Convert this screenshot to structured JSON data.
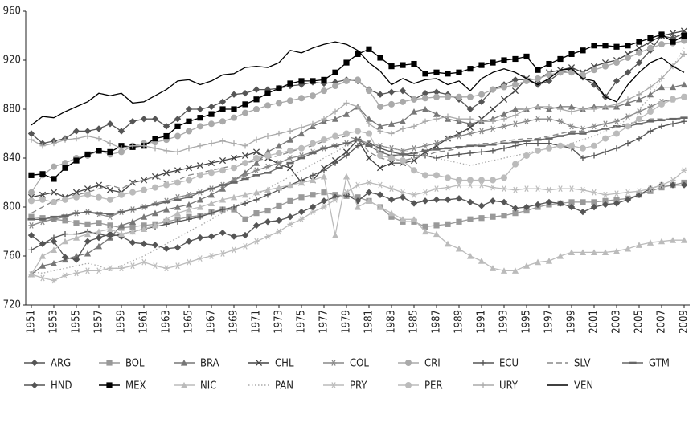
{
  "chart_data": {
    "type": "line",
    "x": [
      1951,
      1952,
      1953,
      1954,
      1955,
      1956,
      1957,
      1958,
      1959,
      1960,
      1961,
      1962,
      1963,
      1964,
      1965,
      1966,
      1967,
      1968,
      1969,
      1970,
      1971,
      1972,
      1973,
      1974,
      1975,
      1976,
      1977,
      1978,
      1979,
      1980,
      1981,
      1982,
      1983,
      1984,
      1985,
      1986,
      1987,
      1988,
      1989,
      1990,
      1991,
      1992,
      1993,
      1994,
      1995,
      1996,
      1997,
      1998,
      1999,
      2000,
      2001,
      2002,
      2003,
      2004,
      2005,
      2006,
      2007,
      2008,
      2009
    ],
    "xlim": [
      1950.5,
      2009.5
    ],
    "xticks": [
      1951,
      1953,
      1955,
      1957,
      1959,
      1961,
      1963,
      1965,
      1967,
      1969,
      1971,
      1973,
      1975,
      1977,
      1979,
      1981,
      1983,
      1985,
      1987,
      1989,
      1991,
      1993,
      1995,
      1997,
      1999,
      2001,
      2003,
      2005,
      2007,
      2009
    ],
    "ylim": [
      720,
      960
    ],
    "yticks": [
      720,
      760,
      800,
      840,
      880,
      920,
      960
    ],
    "series": [
      {
        "name": "ARG",
        "color": "#555555",
        "marker": "diamond",
        "linestyle": "solid",
        "values": [
          860,
          852,
          854,
          856,
          862,
          862,
          864,
          868,
          862,
          870,
          872,
          872,
          866,
          872,
          880,
          880,
          882,
          886,
          892,
          893,
          896,
          896,
          897,
          899,
          900,
          902,
          901,
          902,
          904,
          903,
          896,
          892,
          894,
          895,
          888,
          893,
          894,
          892,
          888,
          880,
          886,
          896,
          900,
          904,
          904,
          900,
          903,
          910,
          912,
          906,
          900,
          890,
          903,
          910,
          918,
          928,
          940,
          938,
          942
        ]
      },
      {
        "name": "BOL",
        "color": "#999999",
        "marker": "square",
        "linestyle": "solid",
        "values": [
          792,
          791,
          790,
          789,
          787,
          786,
          787,
          785,
          783,
          784,
          785,
          786,
          788,
          790,
          792,
          793,
          796,
          798,
          798,
          790,
          795,
          797,
          801,
          805,
          808,
          810,
          812,
          810,
          809,
          808,
          805,
          800,
          792,
          788,
          788,
          784,
          785,
          786,
          788,
          790,
          791,
          792,
          793,
          795,
          797,
          800,
          802,
          803,
          804,
          804,
          804,
          805,
          806,
          807,
          810,
          813,
          816,
          818,
          820
        ]
      },
      {
        "name": "BRA",
        "color": "#777777",
        "marker": "triangle",
        "linestyle": "solid",
        "values": [
          745,
          752,
          754,
          757,
          760,
          762,
          768,
          775,
          785,
          788,
          792,
          795,
          798,
          800,
          802,
          806,
          810,
          815,
          822,
          828,
          836,
          845,
          850,
          855,
          860,
          866,
          870,
          872,
          876,
          882,
          872,
          866,
          868,
          870,
          878,
          880,
          876,
          872,
          870,
          868,
          870,
          872,
          876,
          880,
          880,
          882,
          880,
          882,
          882,
          880,
          882,
          882,
          882,
          885,
          888,
          892,
          898,
          898,
          900
        ]
      },
      {
        "name": "CHL",
        "color": "#444444",
        "marker": "x",
        "linestyle": "solid",
        "values": [
          808,
          810,
          812,
          808,
          812,
          815,
          818,
          814,
          812,
          820,
          822,
          825,
          828,
          830,
          832,
          834,
          836,
          838,
          840,
          842,
          845,
          840,
          835,
          832,
          820,
          822,
          832,
          838,
          845,
          855,
          840,
          832,
          836,
          836,
          838,
          845,
          850,
          856,
          860,
          865,
          872,
          880,
          888,
          895,
          905,
          904,
          910,
          912,
          914,
          910,
          915,
          918,
          920,
          925,
          930,
          935,
          940,
          942,
          944
        ]
      },
      {
        "name": "COL",
        "color": "#888888",
        "marker": "asterisk",
        "linestyle": "solid",
        "values": [
          785,
          788,
          790,
          792,
          795,
          796,
          794,
          792,
          796,
          798,
          800,
          803,
          805,
          808,
          810,
          812,
          815,
          818,
          822,
          826,
          830,
          833,
          836,
          840,
          842,
          845,
          848,
          850,
          852,
          855,
          852,
          850,
          848,
          846,
          848,
          850,
          852,
          856,
          858,
          860,
          862,
          864,
          866,
          868,
          870,
          872,
          872,
          870,
          866,
          864,
          866,
          868,
          870,
          874,
          878,
          882,
          886,
          888,
          890
        ]
      },
      {
        "name": "CRI",
        "color": "#aaaaaa",
        "marker": "circle",
        "linestyle": "solid",
        "values": [
          812,
          826,
          833,
          836,
          840,
          842,
          846,
          843,
          845,
          850,
          852,
          853,
          855,
          858,
          862,
          866,
          868,
          870,
          873,
          877,
          880,
          883,
          885,
          887,
          889,
          891,
          895,
          899,
          903,
          904,
          895,
          882,
          884,
          886,
          888,
          889,
          890,
          890,
          890,
          890,
          892,
          896,
          898,
          900,
          903,
          905,
          908,
          910,
          910,
          908,
          912,
          915,
          918,
          922,
          926,
          930,
          933,
          934,
          936
        ]
      },
      {
        "name": "ECU",
        "color": "#555555",
        "marker": "plus",
        "linestyle": "solid",
        "values": [
          765,
          770,
          775,
          778,
          778,
          780,
          778,
          776,
          778,
          780,
          782,
          784,
          786,
          788,
          790,
          792,
          795,
          798,
          800,
          803,
          806,
          810,
          814,
          818,
          822,
          826,
          830,
          836,
          842,
          850,
          852,
          848,
          845,
          843,
          842,
          842,
          840,
          842,
          843,
          844,
          845,
          846,
          848,
          850,
          852,
          852,
          852,
          850,
          848,
          840,
          842,
          845,
          848,
          852,
          856,
          862,
          866,
          868,
          870
        ]
      },
      {
        "name": "SLV",
        "color": "#888888",
        "marker": "none",
        "linestyle": "dashed",
        "values": [
          795,
          800,
          805,
          808,
          810,
          812,
          815,
          818,
          815,
          820,
          822,
          825,
          820,
          822,
          826,
          828,
          830,
          832,
          834,
          836,
          838,
          840,
          842,
          845,
          848,
          850,
          854,
          856,
          858,
          855,
          845,
          840,
          838,
          838,
          840,
          842,
          845,
          846,
          848,
          850,
          852,
          852,
          854,
          855,
          856,
          856,
          858,
          860,
          862,
          862,
          862,
          864,
          866,
          868,
          870,
          872,
          872,
          872,
          872
        ]
      },
      {
        "name": "GTM",
        "color": "#666666",
        "marker": "dash",
        "linestyle": "solid",
        "values": [
          790,
          790,
          792,
          793,
          795,
          796,
          795,
          794,
          796,
          798,
          800,
          802,
          804,
          806,
          808,
          812,
          815,
          818,
          820,
          823,
          826,
          828,
          832,
          836,
          840,
          844,
          848,
          850,
          852,
          855,
          850,
          845,
          842,
          843,
          844,
          846,
          847,
          848,
          849,
          850,
          850,
          851,
          852,
          853,
          854,
          855,
          856,
          858,
          860,
          860,
          862,
          864,
          866,
          866,
          868,
          870,
          871,
          872,
          873
        ]
      },
      {
        "name": "HND",
        "color": "#555555",
        "marker": "diamond",
        "linestyle": "solid",
        "values": [
          777,
          770,
          772,
          759,
          757,
          772,
          775,
          778,
          776,
          771,
          770,
          769,
          766,
          767,
          772,
          775,
          776,
          779,
          776,
          777,
          785,
          788,
          789,
          792,
          796,
          800,
          805,
          808,
          810,
          805,
          812,
          810,
          806,
          808,
          803,
          805,
          806,
          806,
          807,
          804,
          801,
          805,
          804,
          799,
          800,
          802,
          804,
          803,
          800,
          796,
          800,
          802,
          803,
          806,
          810,
          815,
          818,
          818,
          818
        ]
      },
      {
        "name": "MEX",
        "color": "#000000",
        "marker": "square",
        "linestyle": "solid",
        "values": [
          826,
          827,
          823,
          832,
          838,
          843,
          846,
          845,
          850,
          849,
          850,
          856,
          858,
          866,
          870,
          873,
          876,
          880,
          880,
          884,
          888,
          893,
          897,
          901,
          903,
          903,
          904,
          910,
          918,
          925,
          929,
          922,
          915,
          916,
          917,
          909,
          910,
          909,
          910,
          913,
          916,
          918,
          920,
          921,
          923,
          912,
          917,
          921,
          925,
          928,
          932,
          932,
          931,
          932,
          935,
          938,
          941,
          935,
          940
        ]
      },
      {
        "name": "NIC",
        "color": "#bbbbbb",
        "marker": "triangle",
        "linestyle": "solid",
        "values": [
          745,
          760,
          765,
          772,
          775,
          778,
          780,
          782,
          778,
          780,
          782,
          785,
          790,
          795,
          798,
          800,
          803,
          806,
          808,
          810,
          812,
          814,
          816,
          818,
          820,
          822,
          825,
          777,
          825,
          800,
          805,
          800,
          795,
          790,
          790,
          780,
          778,
          770,
          766,
          760,
          756,
          750,
          748,
          748,
          752,
          755,
          756,
          760,
          763,
          763,
          763,
          763,
          764,
          766,
          769,
          771,
          772,
          773,
          773
        ]
      },
      {
        "name": "PAN",
        "color": "#aaaaaa",
        "marker": "none",
        "linestyle": "dotted",
        "values": [
          747,
          746,
          748,
          750,
          752,
          754,
          752,
          748,
          752,
          756,
          760,
          765,
          770,
          775,
          780,
          785,
          790,
          795,
          800,
          805,
          810,
          815,
          820,
          825,
          830,
          835,
          840,
          845,
          850,
          855,
          852,
          850,
          848,
          846,
          844,
          842,
          840,
          838,
          836,
          834,
          836,
          838,
          840,
          842,
          844,
          846,
          848,
          850,
          852,
          855,
          858,
          862,
          866,
          872,
          880,
          890,
          905,
          915,
          930
        ]
      },
      {
        "name": "PRY",
        "color": "#bbbbbb",
        "marker": "asterisk",
        "linestyle": "solid",
        "values": [
          745,
          742,
          740,
          744,
          746,
          748,
          748,
          750,
          750,
          752,
          755,
          752,
          750,
          752,
          755,
          758,
          760,
          762,
          765,
          768,
          772,
          776,
          780,
          786,
          790,
          796,
          800,
          806,
          812,
          818,
          820,
          818,
          815,
          812,
          810,
          812,
          815,
          816,
          818,
          818,
          818,
          816,
          815,
          814,
          815,
          815,
          814,
          815,
          815,
          814,
          812,
          810,
          811,
          812,
          813,
          815,
          818,
          822,
          830
        ]
      },
      {
        "name": "PER",
        "color": "#bbbbbb",
        "marker": "circle",
        "linestyle": "solid",
        "values": [
          805,
          806,
          804,
          806,
          808,
          810,
          808,
          806,
          810,
          812,
          814,
          816,
          818,
          820,
          822,
          826,
          828,
          830,
          832,
          836,
          840,
          842,
          844,
          846,
          848,
          852,
          855,
          858,
          860,
          862,
          860,
          842,
          840,
          838,
          830,
          826,
          826,
          824,
          822,
          822,
          822,
          822,
          824,
          835,
          842,
          846,
          848,
          850,
          850,
          848,
          850,
          856,
          860,
          866,
          872,
          878,
          884,
          888,
          890
        ]
      },
      {
        "name": "URY",
        "color": "#aaaaaa",
        "marker": "plus",
        "linestyle": "solid",
        "values": [
          855,
          850,
          852,
          855,
          856,
          858,
          856,
          852,
          848,
          850,
          850,
          848,
          846,
          845,
          848,
          850,
          852,
          854,
          852,
          850,
          855,
          858,
          860,
          862,
          865,
          868,
          872,
          878,
          885,
          882,
          868,
          862,
          860,
          864,
          866,
          870,
          872,
          874,
          872,
          872,
          870,
          870,
          872,
          875,
          880,
          882,
          882,
          880,
          878,
          880,
          880,
          882,
          884,
          888,
          892,
          898,
          905,
          915,
          925
        ]
      },
      {
        "name": "VEN",
        "color": "#000000",
        "marker": "none",
        "linestyle": "solid",
        "values": [
          867,
          874,
          873,
          878,
          882,
          886,
          893,
          891,
          893,
          885,
          886,
          891,
          896,
          903,
          904,
          900,
          903,
          908,
          909,
          914,
          915,
          914,
          918,
          928,
          926,
          930,
          933,
          935,
          933,
          928,
          918,
          911,
          900,
          905,
          901,
          904,
          905,
          900,
          903,
          895,
          905,
          910,
          913,
          910,
          905,
          900,
          905,
          912,
          913,
          905,
          903,
          890,
          886,
          900,
          910,
          918,
          922,
          915,
          910
        ]
      }
    ]
  }
}
